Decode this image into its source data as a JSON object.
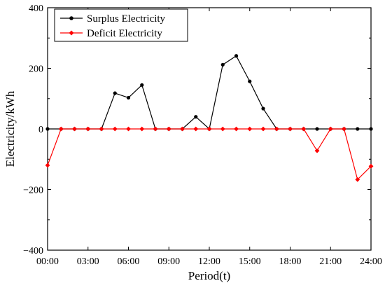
{
  "chart_data": {
    "type": "line",
    "x": [
      "00:00",
      "01:00",
      "02:00",
      "03:00",
      "04:00",
      "05:00",
      "06:00",
      "07:00",
      "08:00",
      "09:00",
      "10:00",
      "11:00",
      "12:00",
      "13:00",
      "14:00",
      "15:00",
      "16:00",
      "17:00",
      "18:00",
      "19:00",
      "20:00",
      "21:00",
      "22:00",
      "23:00",
      "24:00"
    ],
    "x_tick_labels": [
      "00:00",
      "03:00",
      "06:00",
      "09:00",
      "12:00",
      "15:00",
      "18:00",
      "21:00",
      "24:00"
    ],
    "y_tick_labels": [
      "400",
      "200",
      "0",
      "−200",
      "−400"
    ],
    "y_ticks": [
      400,
      200,
      0,
      -200,
      -400
    ],
    "xlabel": "Period(t)",
    "ylabel": "Electricity/kWh",
    "ylim": [
      -400,
      400
    ],
    "xlim": [
      0,
      24
    ],
    "grid": false,
    "legend_position": "top-left",
    "series": [
      {
        "name": "Surplus Electricity",
        "color": "#000000",
        "marker": "circle",
        "values": [
          0,
          0,
          0,
          0,
          0,
          118,
          103,
          145,
          0,
          0,
          0,
          40,
          0,
          212,
          241,
          157,
          67,
          0,
          0,
          0,
          0,
          0,
          0,
          0,
          0
        ]
      },
      {
        "name": "Deficit Electricity",
        "color": "#ff0000",
        "marker": "diamond",
        "values": [
          -120,
          0,
          0,
          0,
          0,
          0,
          0,
          0,
          0,
          0,
          0,
          0,
          0,
          0,
          0,
          0,
          0,
          0,
          0,
          0,
          -72,
          0,
          0,
          -167,
          -123
        ]
      }
    ]
  }
}
